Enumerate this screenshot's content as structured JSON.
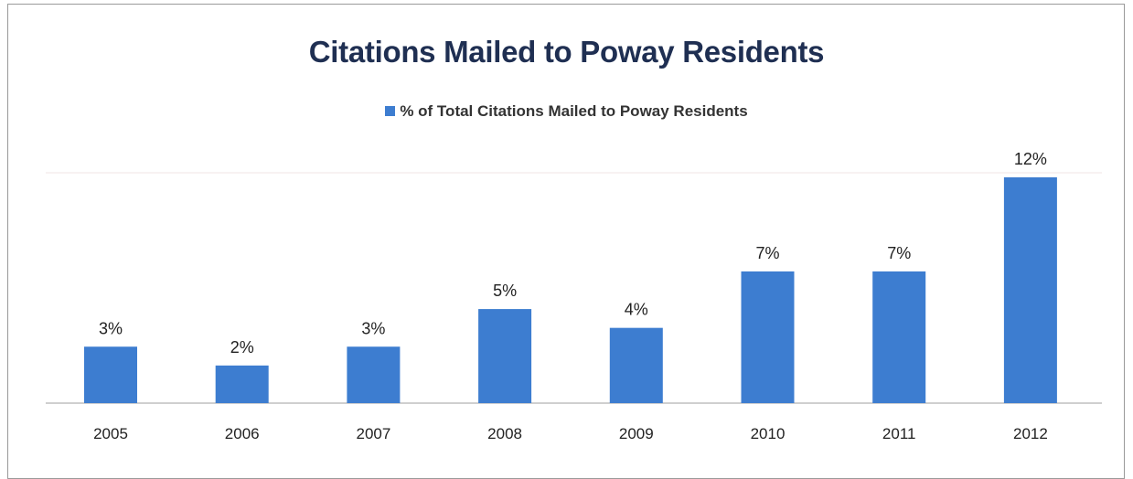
{
  "chart_data": {
    "type": "bar",
    "title": "Citations Mailed to Poway Residents",
    "categories": [
      "2005",
      "2006",
      "2007",
      "2008",
      "2009",
      "2010",
      "2011",
      "2012"
    ],
    "series": [
      {
        "name": "% of Total Citations Mailed to Poway Residents",
        "values": [
          3,
          2,
          3,
          5,
          4,
          7,
          7,
          12
        ],
        "labels": [
          "3%",
          "2%",
          "3%",
          "5%",
          "4%",
          "7%",
          "7%",
          "12%"
        ],
        "color": "#3d7dd0"
      }
    ],
    "ylim": [
      0,
      12
    ],
    "legend": "top-center",
    "grid": false
  }
}
